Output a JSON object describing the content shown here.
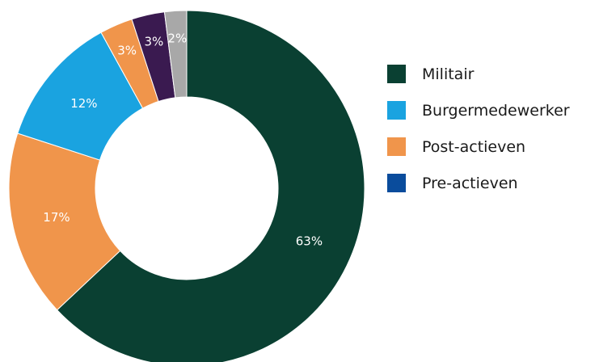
{
  "chart_data": {
    "type": "pie",
    "style": "donut",
    "start": "top",
    "direction": "clockwise",
    "slices": [
      {
        "label": "63%",
        "value": 63,
        "color": "#0a4032"
      },
      {
        "label": "17%",
        "value": 17,
        "color": "#f0954b"
      },
      {
        "label": "12%",
        "value": 12,
        "color": "#1aa3e0"
      },
      {
        "label": "3%",
        "value": 3,
        "color": "#f0954b"
      },
      {
        "label": "3%",
        "value": 3,
        "color": "#3a1a50"
      },
      {
        "label": "2%",
        "value": 2,
        "color": "#a8a8a8"
      }
    ],
    "legend": [
      {
        "label": "Militair",
        "color": "#0a4032"
      },
      {
        "label": "Burgermedewerker",
        "color": "#1aa3e0"
      },
      {
        "label": "Post-actieven",
        "color": "#f0954b"
      },
      {
        "label": "Pre-actieven",
        "color": "#0a4c9c"
      }
    ],
    "legend_position": "right"
  }
}
